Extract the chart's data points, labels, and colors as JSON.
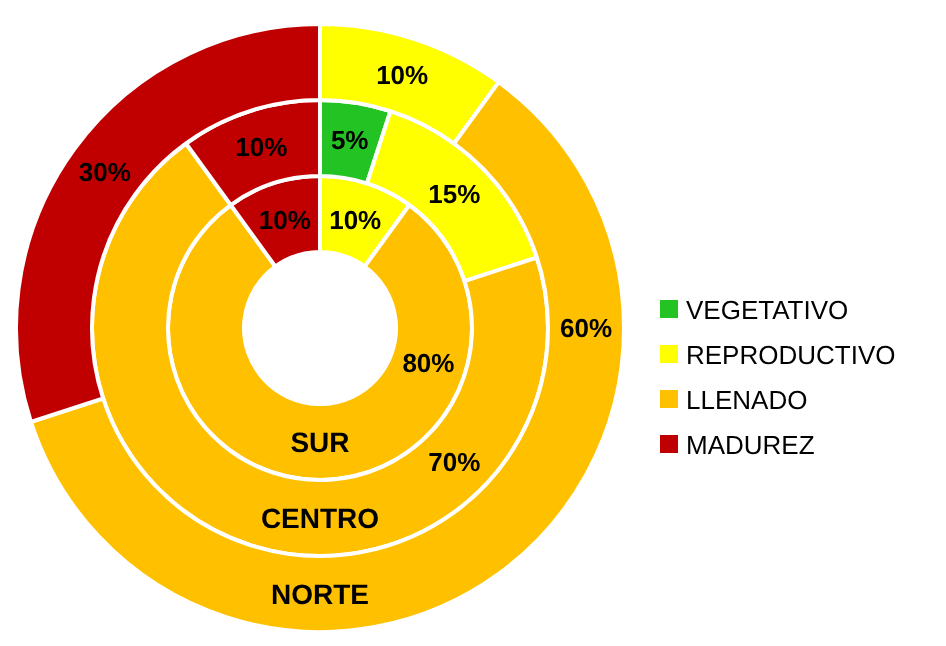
{
  "chart_data": {
    "type": "donut",
    "categories": [
      "VEGETATIVO",
      "REPRODUCTIVO",
      "LLENADO",
      "MADUREZ"
    ],
    "colors": [
      "#22c322",
      "#ffff00",
      "#ffc000",
      "#c00000"
    ],
    "legend": "right",
    "series": [
      {
        "name": "SUR",
        "values": [
          0,
          10,
          80,
          10
        ],
        "value_labels": [
          null,
          "10%",
          "80%",
          "10%"
        ]
      },
      {
        "name": "CENTRO",
        "values": [
          5,
          15,
          70,
          10
        ],
        "value_labels": [
          "5%",
          "15%",
          "70%",
          "10%"
        ]
      },
      {
        "name": "NORTE",
        "values": [
          0,
          10,
          60,
          30
        ],
        "value_labels": [
          null,
          "10%",
          "60%",
          "30%"
        ]
      }
    ]
  }
}
